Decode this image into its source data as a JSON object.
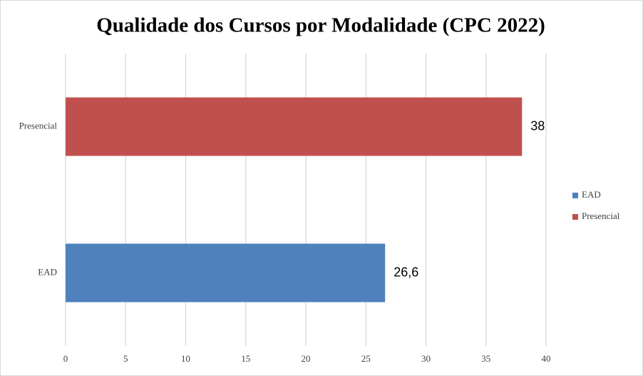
{
  "chart_data": {
    "type": "barh",
    "title": "Qualidade dos Cursos por Modalidade (CPC 2022)",
    "categories": [
      "EAD",
      "Presencial"
    ],
    "values": [
      26.6,
      38
    ],
    "value_labels": [
      "26,6",
      "38"
    ],
    "colors": [
      "#4f81bd",
      "#c0504d"
    ],
    "xlim": [
      0,
      40
    ],
    "xticks": [
      0,
      5,
      10,
      15,
      20,
      25,
      30,
      35,
      40
    ],
    "grid": true,
    "legend": "right"
  }
}
